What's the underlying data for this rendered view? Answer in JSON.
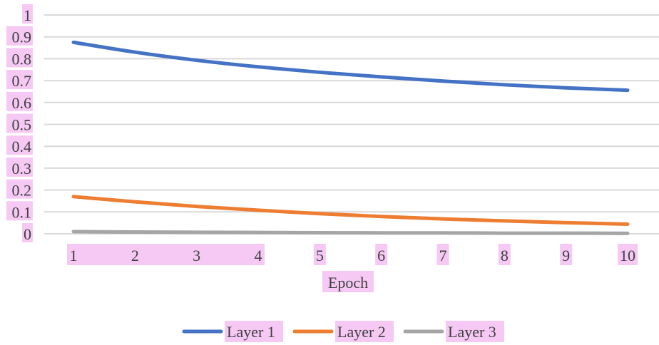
{
  "chart_data": {
    "type": "line",
    "title": "",
    "xlabel": "Epoch",
    "ylabel": "",
    "categories": [
      "1",
      "2",
      "3",
      "4",
      "5",
      "6",
      "7",
      "8",
      "9",
      "10"
    ],
    "y_ticks": [
      "0",
      "0.1",
      "0.2",
      "0.3",
      "0.4",
      "0.5",
      "0.6",
      "0.7",
      "0.8",
      "0.9",
      "1"
    ],
    "ylim": [
      0,
      1
    ],
    "grid": true,
    "legend_position": "bottom",
    "series": [
      {
        "name": "Layer 1",
        "color": "#4472c4",
        "values": [
          0.875,
          0.83,
          0.793,
          0.763,
          0.738,
          0.717,
          0.698,
          0.681,
          0.667,
          0.656
        ]
      },
      {
        "name": "Layer 2",
        "color": "#ed7d31",
        "values": [
          0.17,
          0.146,
          0.125,
          0.108,
          0.092,
          0.079,
          0.068,
          0.059,
          0.051,
          0.044
        ]
      },
      {
        "name": "Layer 3",
        "color": "#a5a5a5",
        "values": [
          0.01,
          0.008,
          0.007,
          0.006,
          0.005,
          0.004,
          0.004,
          0.003,
          0.003,
          0.002
        ]
      }
    ]
  }
}
